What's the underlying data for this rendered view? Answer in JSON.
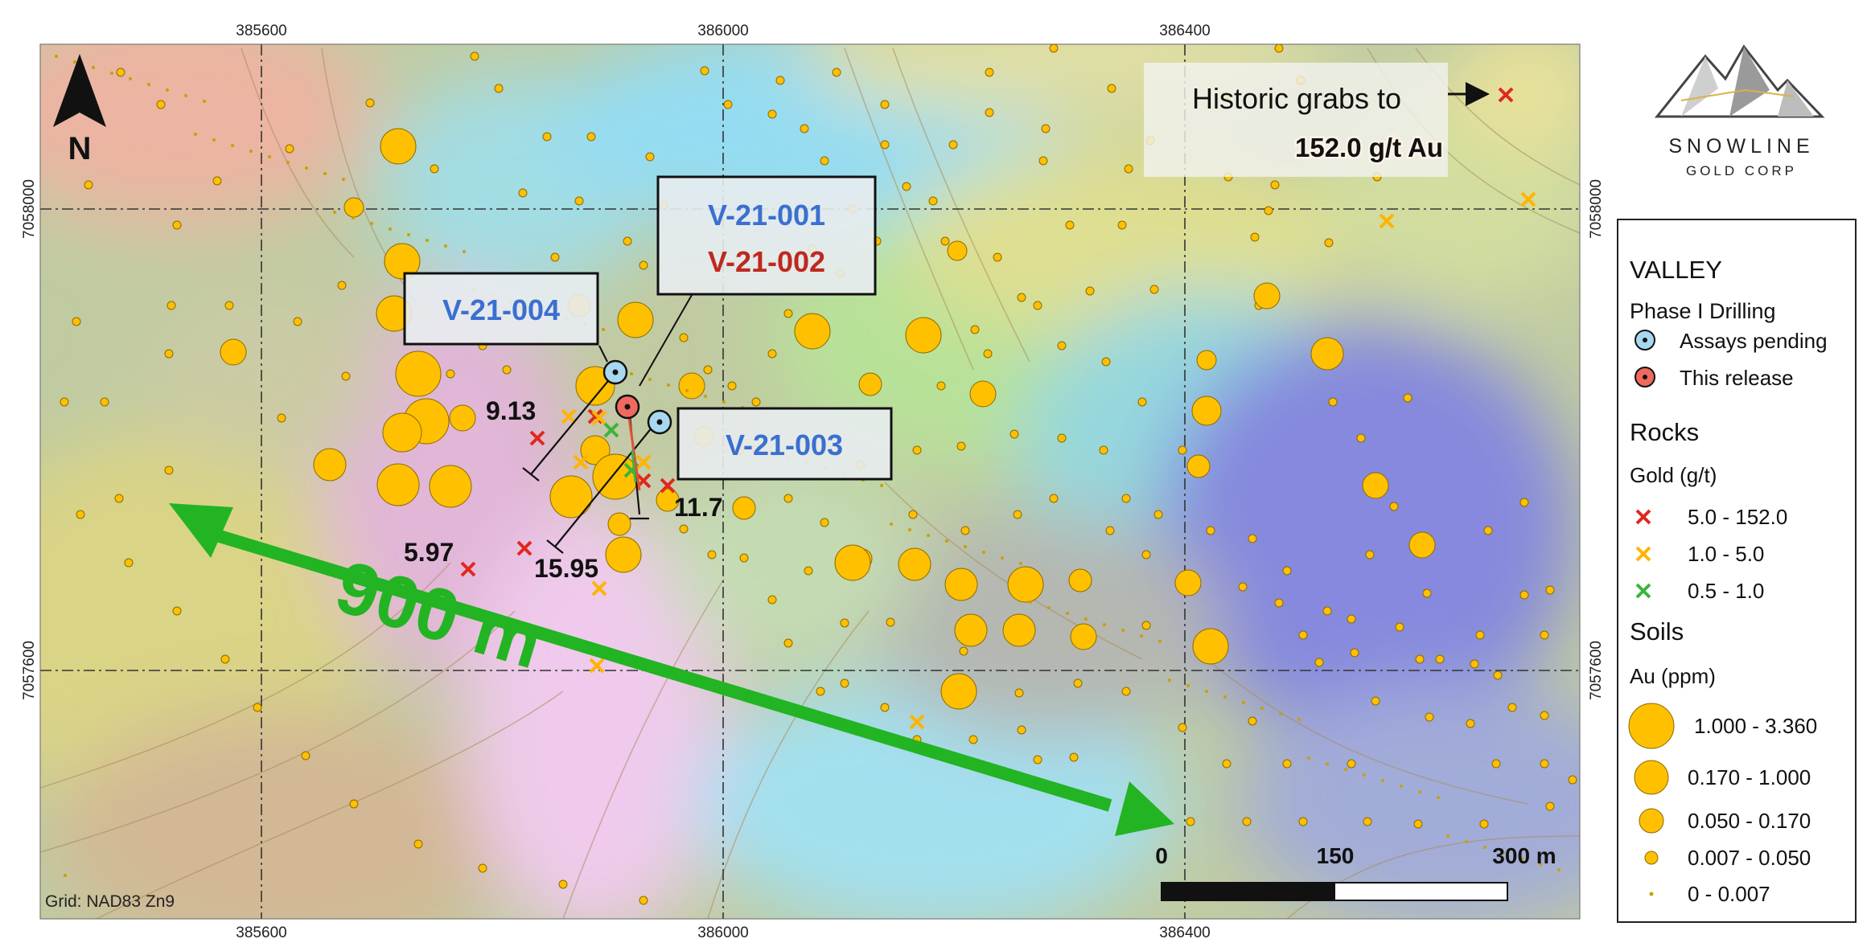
{
  "map": {
    "grid_label": "Grid: NAD83 Zn9",
    "north_label": "N",
    "easting_labels": [
      "385600",
      "386000",
      "386400"
    ],
    "northing_labels": [
      "7058000",
      "7057600"
    ],
    "historic_note": {
      "line1": "Historic grabs to",
      "line2": "152.0 g/t Au"
    },
    "distance_label": "900 m",
    "scale_bar": {
      "labels": [
        "0",
        "150",
        "300 m"
      ]
    },
    "drillholes": [
      {
        "id": "V-21-001",
        "status": "Assays pending",
        "color": "#3b6fd0"
      },
      {
        "id": "V-21-002",
        "status": "This release",
        "color": "#c0281e"
      },
      {
        "id": "V-21-003",
        "status": "Assays pending",
        "color": "#3b6fd0"
      },
      {
        "id": "V-21-004",
        "status": "Assays pending",
        "color": "#3b6fd0"
      }
    ],
    "rock_values": [
      "9.13",
      "11.7",
      "5.97",
      "15.95"
    ],
    "colors": {
      "soil": "#ffc000",
      "rock_high": "#e0281e",
      "rock_mid": "#ffb400",
      "rock_low": "#3cb43c",
      "arrow": "#22b422"
    }
  },
  "logo": {
    "name": "SNOWLINE",
    "sub": "GOLD CORP"
  },
  "legend": {
    "title": "VALLEY",
    "drilling": {
      "heading": "Phase I Drilling",
      "items": [
        "Assays pending",
        "This release"
      ]
    },
    "rocks": {
      "heading": "Rocks",
      "sub": "Gold (g/t)",
      "items": [
        "5.0 - 152.0",
        "1.0 - 5.0",
        "0.5 - 1.0"
      ]
    },
    "soils": {
      "heading": "Soils",
      "sub": "Au (ppm)",
      "items": [
        "1.000 - 3.360",
        "0.170 - 1.000",
        "0.050 - 0.170",
        "0.007 - 0.050",
        "0 - 0.007"
      ]
    }
  }
}
